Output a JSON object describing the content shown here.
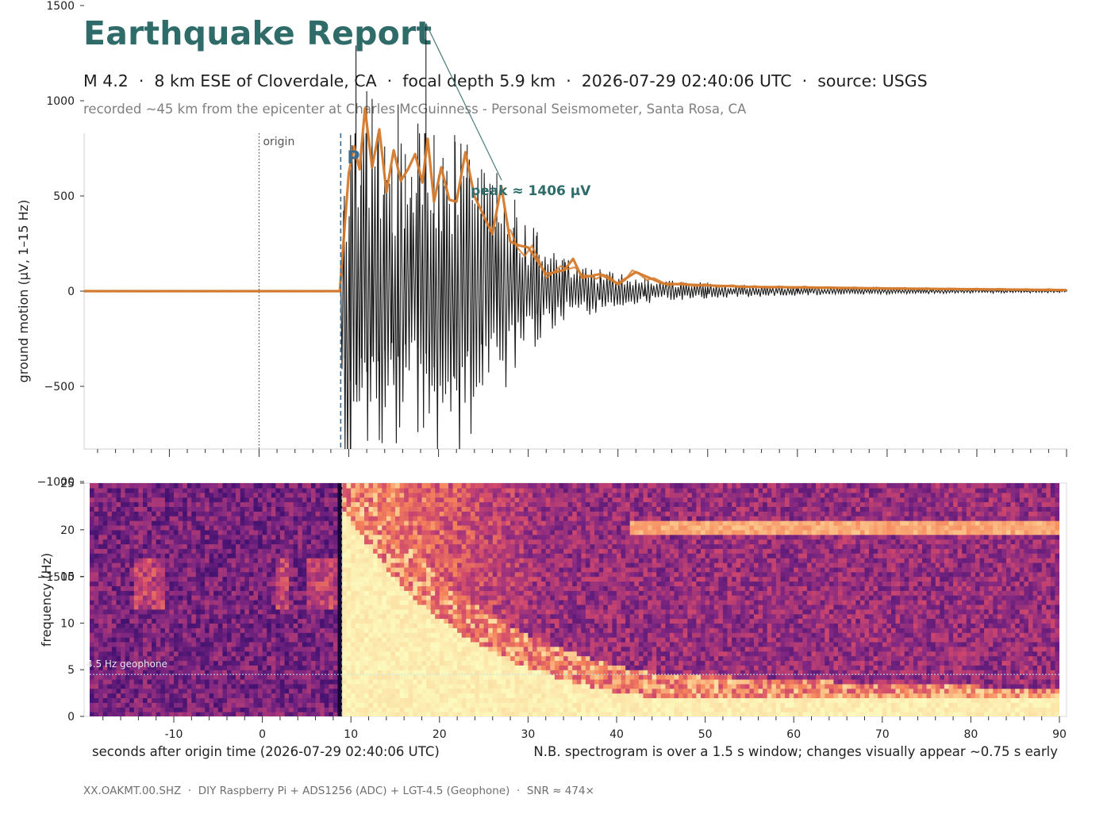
{
  "report": {
    "title": "Earthquake Report",
    "subtitle": "M 4.2  ·  8 km ESE of Cloverdale, CA  ·  focal depth 5.9 km  ·  2026-07-29 02:40:06 UTC  ·  source: USGS",
    "recorded": "recorded ~45 km from the epicenter at Charles McGuinness - Personal Seismometer, Santa Rosa, CA",
    "footer": "XX.OAKMT.00.SHZ  ·  DIY Raspberry Pi + ADS1256 (ADC) + LGT-4.5 (Geophone)  ·  SNR ≈ 474×"
  },
  "colors": {
    "title": "#2e6b69",
    "trace": "#1a1a1a",
    "envelope": "#d47a2c",
    "p_marker": "#3d6b8e",
    "peak_annotation": "#2e6b69",
    "origin_marker": "#555555"
  },
  "chart_data": [
    {
      "type": "line",
      "ylabel": "ground motion  (µV, 1–15 Hz)",
      "xlim": [
        -19.5,
        90
      ],
      "ylim": [
        -1650,
        1650
      ],
      "yticks": [
        -1500,
        -1000,
        -500,
        0,
        500,
        1000,
        1500
      ],
      "ytick_labels": [
        "−1500",
        "−1000",
        "−500",
        "0",
        "500",
        "1000",
        "1500"
      ],
      "markers": {
        "origin": {
          "x": 0,
          "label": "origin"
        },
        "p_arrival": {
          "x": 9.1,
          "label": "P"
        }
      },
      "peak": {
        "x": 18.6,
        "value": 1406,
        "label": "peak ≈ 1406 µV"
      },
      "series": [
        {
          "role": "trace",
          "x": [
            9.1,
            9.5,
            10.2,
            10.8,
            11.4,
            12.0,
            12.6,
            13.3,
            14.0,
            14.8,
            15.5,
            16.3,
            17.0,
            17.7,
            18.6,
            19.5,
            20.5,
            21.8,
            23.2,
            24.8,
            26.5,
            28.5,
            31.0,
            34.0,
            38.0,
            43.0,
            50.0,
            60.0,
            75.0,
            90.0
          ],
          "amplitude_pos": [
            180,
            500,
            820,
            1290,
            780,
            1050,
            1010,
            820,
            760,
            660,
            980,
            720,
            600,
            880,
            1406,
            820,
            700,
            820,
            770,
            640,
            620,
            480,
            310,
            170,
            115,
            70,
            45,
            26,
            14,
            8
          ],
          "amplitude_neg": [
            -220,
            -880,
            -1180,
            -1230,
            -880,
            -1060,
            -860,
            -920,
            -780,
            -680,
            -860,
            -700,
            -600,
            -750,
            -820,
            -1000,
            -720,
            -1150,
            -860,
            -700,
            -600,
            -460,
            -300,
            -160,
            -110,
            -65,
            -40,
            -24,
            -13,
            -8
          ]
        },
        {
          "role": "envelope",
          "x": [
            -19.5,
            -10,
            0,
            9.0,
            9.4,
            10.0,
            10.6,
            11.2,
            11.8,
            12.6,
            13.4,
            14.2,
            15.0,
            15.8,
            16.6,
            17.4,
            18.2,
            18.8,
            19.5,
            20.3,
            21.2,
            22.0,
            23.0,
            24.0,
            25.0,
            26.0,
            27.0,
            28.0,
            29.0,
            30.0,
            32.0,
            34.0,
            35.0,
            36.0,
            38.0,
            40.0,
            42.0,
            45.0,
            50.0,
            55.0,
            60.0,
            70.0,
            80.0,
            90.0
          ],
          "values": [
            0,
            0,
            0,
            0,
            250,
            620,
            760,
            640,
            960,
            650,
            850,
            520,
            740,
            580,
            640,
            720,
            570,
            800,
            470,
            650,
            480,
            470,
            730,
            500,
            400,
            300,
            550,
            260,
            240,
            230,
            90,
            110,
            170,
            70,
            90,
            40,
            100,
            40,
            30,
            22,
            20,
            14,
            10,
            6
          ]
        }
      ]
    },
    {
      "type": "heatmap",
      "ylabel": "frequency (Hz)",
      "xlabel": "seconds after origin time  (2026-07-29 02:40:06 UTC)",
      "note": "N.B. spectrogram is over a 1.5 s window; changes visually appear ~0.75 s early",
      "xlim": [
        -19.5,
        90
      ],
      "ylim": [
        0,
        25
      ],
      "xticks": [
        -10,
        0,
        10,
        20,
        30,
        40,
        50,
        60,
        70,
        80,
        90
      ],
      "yticks": [
        0,
        5,
        10,
        15,
        20,
        25
      ],
      "colormap": "magma",
      "geophone_line": {
        "y": 4.5,
        "label": "4.5 Hz geophone"
      },
      "features": {
        "p_onset": 9.0,
        "noise_band_hz": 20,
        "noise_band_from": 41
      }
    }
  ]
}
